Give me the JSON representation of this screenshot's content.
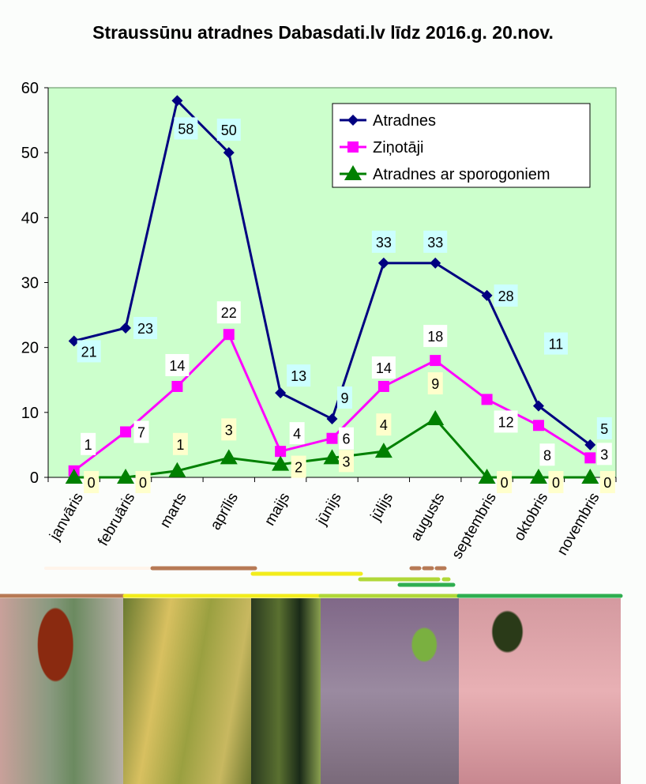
{
  "chart_data": {
    "type": "line",
    "title": "Straussūnu atradnes Dabasdati.lv līdz 2016.g. 20.nov.",
    "xlabel": "",
    "ylabel": "",
    "ylim": [
      0,
      60
    ],
    "yticks": [
      0,
      10,
      20,
      30,
      40,
      50,
      60
    ],
    "grid": false,
    "legend_position": "top-right",
    "categories": [
      "janvāris",
      "februāris",
      "marts",
      "aprīlis",
      "maijs",
      "jūnijs",
      "jūlijs",
      "augusts",
      "septembris",
      "oktobris",
      "novembris"
    ],
    "series": [
      {
        "name": "Atradnes",
        "color": "#000080",
        "marker": "diamond",
        "label_bg": "#ccffff",
        "values": [
          21,
          23,
          58,
          50,
          13,
          9,
          33,
          33,
          28,
          11,
          5
        ]
      },
      {
        "name": "Ziņotāji",
        "color": "#ff00ff",
        "marker": "square",
        "label_bg": "#ffffff",
        "values": [
          1,
          7,
          14,
          22,
          4,
          6,
          14,
          18,
          12,
          8,
          3
        ]
      },
      {
        "name": "Atradnes ar sporogoniem",
        "color": "#008000",
        "marker": "triangle",
        "label_bg": "#ffffcc",
        "values": [
          0,
          0,
          1,
          3,
          2,
          3,
          4,
          9,
          0,
          0,
          0
        ]
      }
    ],
    "plot_bg": "#ccffcc"
  }
}
